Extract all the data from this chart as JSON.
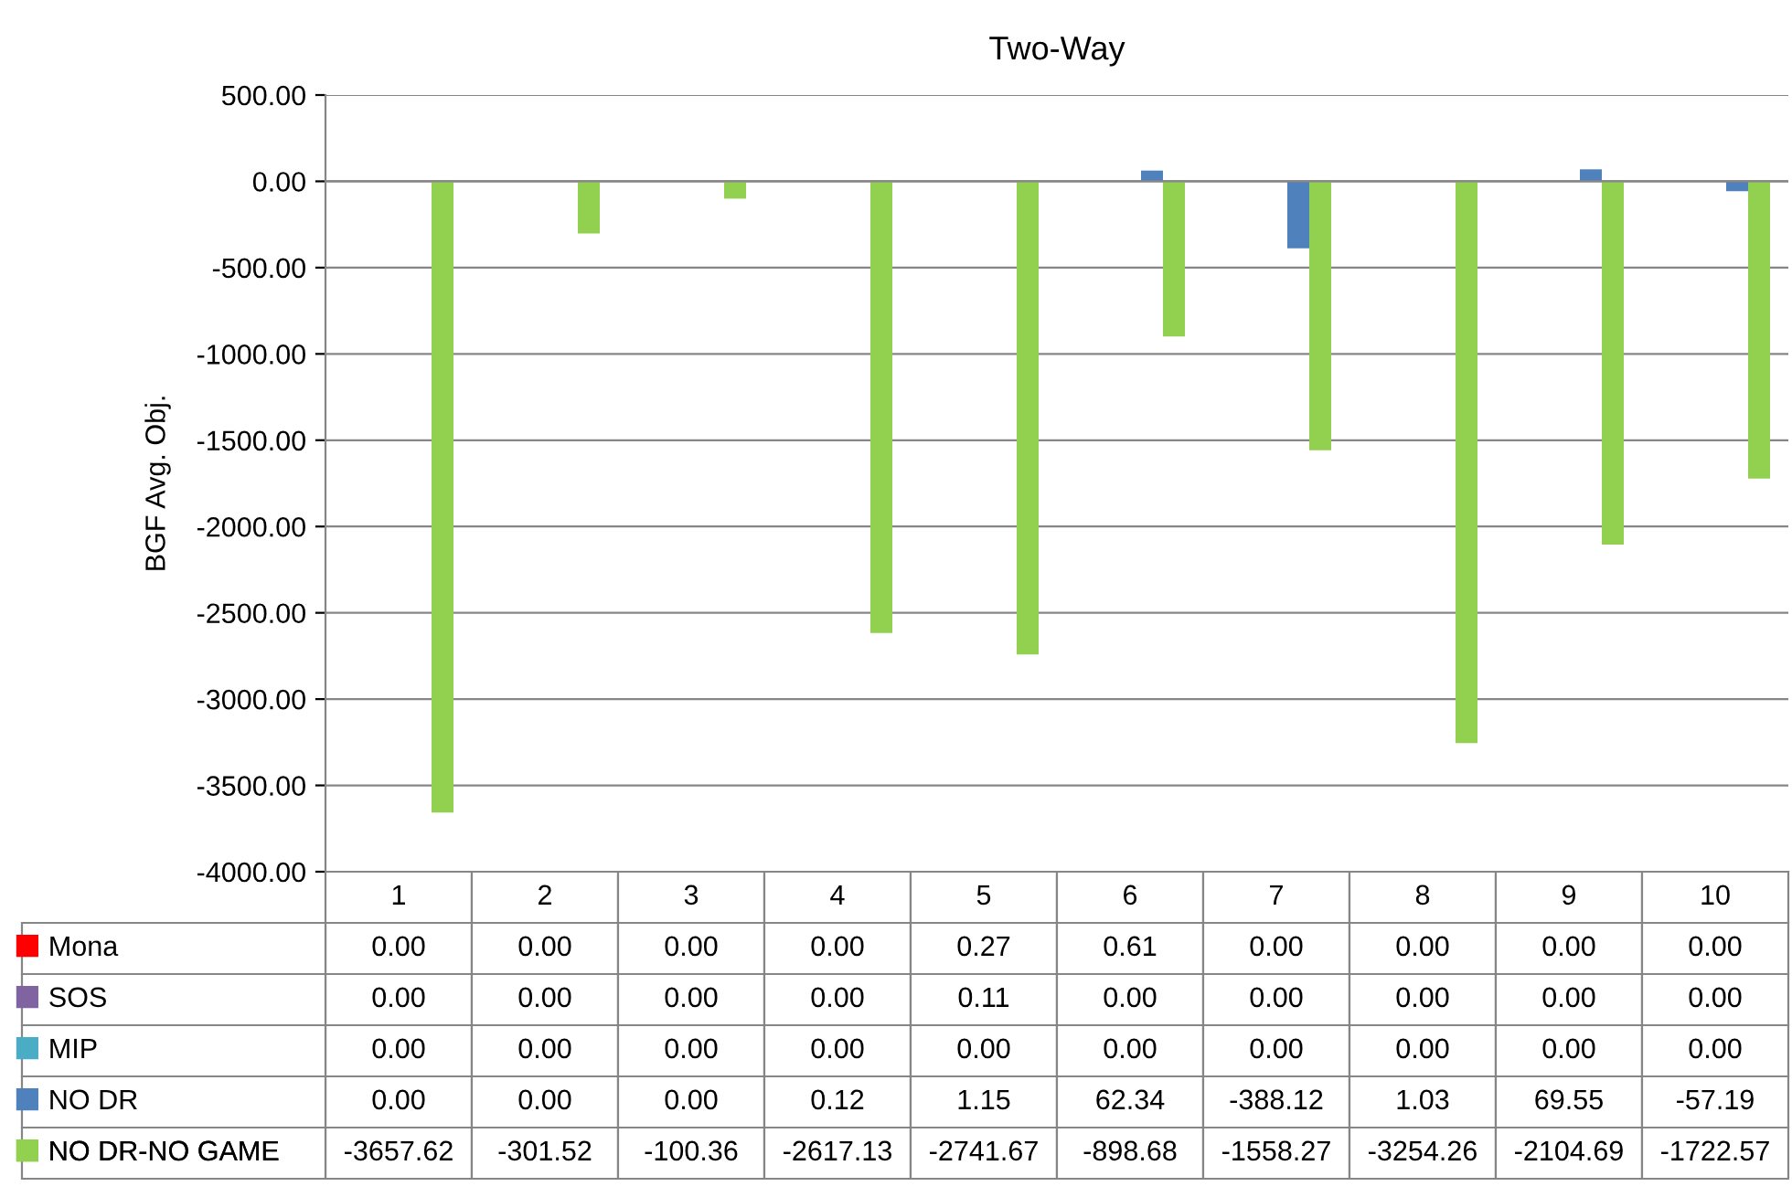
{
  "chart_data": {
    "type": "bar",
    "title": "Two-Way",
    "ylabel": "BGF Avg. Obj.",
    "categories": [
      "1",
      "2",
      "3",
      "4",
      "5",
      "6",
      "7",
      "8",
      "9",
      "10"
    ],
    "series": [
      {
        "name": "Mona",
        "color": "#ff0000",
        "values": [
          0,
          0,
          0,
          0,
          0.27,
          0.61,
          0,
          0,
          0,
          0
        ],
        "value_labels": [
          "0.00",
          "0.00",
          "0.00",
          "0.00",
          "0.27",
          "0.61",
          "0.00",
          "0.00",
          "0.00",
          "0.00"
        ]
      },
      {
        "name": "SOS",
        "color": "#8064a2",
        "values": [
          0,
          0,
          0,
          0,
          0.11,
          0,
          0,
          0,
          0,
          0
        ],
        "value_labels": [
          "0.00",
          "0.00",
          "0.00",
          "0.00",
          "0.11",
          "0.00",
          "0.00",
          "0.00",
          "0.00",
          "0.00"
        ]
      },
      {
        "name": "MIP",
        "color": "#4bacc6",
        "values": [
          0,
          0,
          0,
          0,
          0,
          0,
          0,
          0,
          0,
          0
        ],
        "value_labels": [
          "0.00",
          "0.00",
          "0.00",
          "0.00",
          "0.00",
          "0.00",
          "0.00",
          "0.00",
          "0.00",
          "0.00"
        ]
      },
      {
        "name": "NO DR",
        "color": "#4f81bd",
        "values": [
          0,
          0,
          0,
          0.12,
          1.15,
          62.34,
          -388.12,
          1.03,
          69.55,
          -57.19
        ],
        "value_labels": [
          "0.00",
          "0.00",
          "0.00",
          "0.12",
          "1.15",
          "62.34",
          "-388.12",
          "1.03",
          "69.55",
          "-57.19"
        ]
      },
      {
        "name": "NO DR-NO GAME",
        "color": "#92d050",
        "values": [
          -3657.62,
          -301.52,
          -100.36,
          -2617.13,
          -2741.67,
          -898.68,
          -1558.27,
          -3254.26,
          -2104.69,
          -1722.57
        ],
        "value_labels": [
          "-3657.62",
          "-301.52",
          "-100.36",
          "-2617.13",
          "-2741.67",
          "-898.68",
          "-1558.27",
          "-3254.26",
          "-2104.69",
          "-1722.57"
        ]
      }
    ],
    "ylim": [
      -4000,
      500
    ],
    "yticks": [
      {
        "value": -4000,
        "label": "-4000.00"
      },
      {
        "value": -3500,
        "label": "-3500.00"
      },
      {
        "value": -3000,
        "label": "-3000.00"
      },
      {
        "value": -2500,
        "label": "-2500.00"
      },
      {
        "value": -2000,
        "label": "-2000.00"
      },
      {
        "value": -1500,
        "label": "-1500.00"
      },
      {
        "value": -1000,
        "label": "-1000.00"
      },
      {
        "value": -500,
        "label": "-500.00"
      },
      {
        "value": 0,
        "label": "0.00"
      },
      {
        "value": 500,
        "label": "500.00"
      }
    ],
    "grid": "y",
    "legend": "bottom"
  }
}
